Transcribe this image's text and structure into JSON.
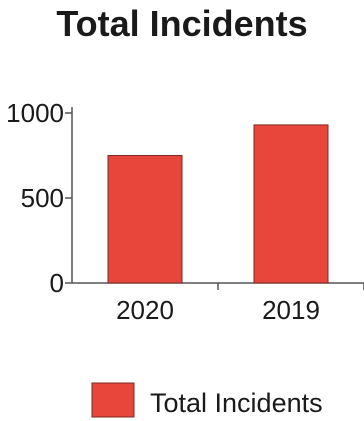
{
  "chart_data": {
    "type": "bar",
    "title": "Total Incidents",
    "categories": [
      "2020",
      "2019"
    ],
    "series": [
      {
        "name": "Total Incidents",
        "values": [
          750,
          930
        ]
      }
    ],
    "ylim": [
      0,
      1000
    ],
    "yticks": [
      0,
      500,
      1000
    ],
    "xlabel": "",
    "ylabel": "",
    "grid": false,
    "legend_position": "bottom",
    "colors": {
      "bar_fill": "#e8463a",
      "bar_stroke": "#7a2a22",
      "axis": "#555555"
    }
  }
}
